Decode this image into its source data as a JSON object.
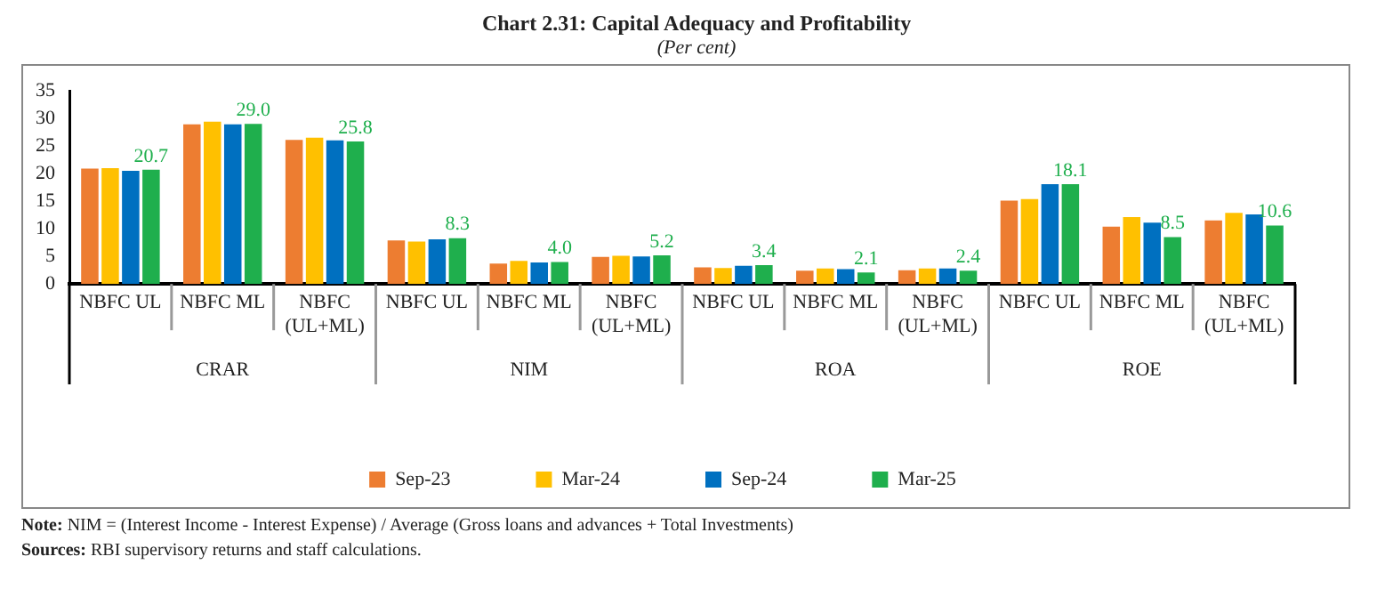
{
  "chart_data": {
    "type": "bar",
    "title": "Chart 2.31: Capital Adequacy and Profitability",
    "subtitle": "(Per cent)",
    "categories": [
      "NBFC UL",
      "NBFC ML",
      "NBFC (UL+ML)",
      "NBFC UL",
      "NBFC ML",
      "NBFC (UL+ML)",
      "NBFC UL",
      "NBFC ML",
      "NBFC (UL+ML)",
      "NBFC UL",
      "NBFC ML",
      "NBFC (UL+ML)"
    ],
    "series": [
      {
        "name": "Sep-23",
        "color": "#ed7d31",
        "values": [
          20.9,
          28.9,
          26.1,
          7.9,
          3.7,
          4.9,
          3.0,
          2.4,
          2.5,
          15.1,
          10.4,
          11.5
        ]
      },
      {
        "name": "Mar-24",
        "color": "#ffc000",
        "values": [
          21.0,
          29.4,
          26.5,
          7.7,
          4.2,
          5.1,
          2.9,
          2.8,
          2.8,
          15.4,
          12.1,
          12.9
        ]
      },
      {
        "name": "Sep-24",
        "color": "#0070c0",
        "values": [
          20.5,
          28.9,
          26.0,
          8.1,
          3.9,
          5.0,
          3.3,
          2.7,
          2.8,
          18.1,
          11.1,
          12.6
        ]
      },
      {
        "name": "Mar-25",
        "color": "#1faf4d",
        "values": [
          20.7,
          29.0,
          25.8,
          8.3,
          4.0,
          5.2,
          3.4,
          2.1,
          2.4,
          18.1,
          8.5,
          10.6
        ],
        "value_labels": [
          "20.7",
          "29.0",
          "25.8",
          "8.3",
          "4.0",
          "5.2",
          "3.4",
          "2.1",
          "2.4",
          "18.1",
          "8.5",
          "10.6"
        ]
      }
    ],
    "ylim": [
      0,
      35
    ],
    "yticks": [
      0,
      5,
      10,
      15,
      20,
      25,
      30,
      35
    ],
    "grid": false,
    "legend": "bottom",
    "annotations": [
      "CRAR",
      "NIM",
      "ROA",
      "ROE",
      "Note: NIM = (Interest Income - Interest Expense) / Average (Gross loans and advances + Total Investments)",
      "Sources: RBI supervisory returns and staff calculations."
    ]
  }
}
